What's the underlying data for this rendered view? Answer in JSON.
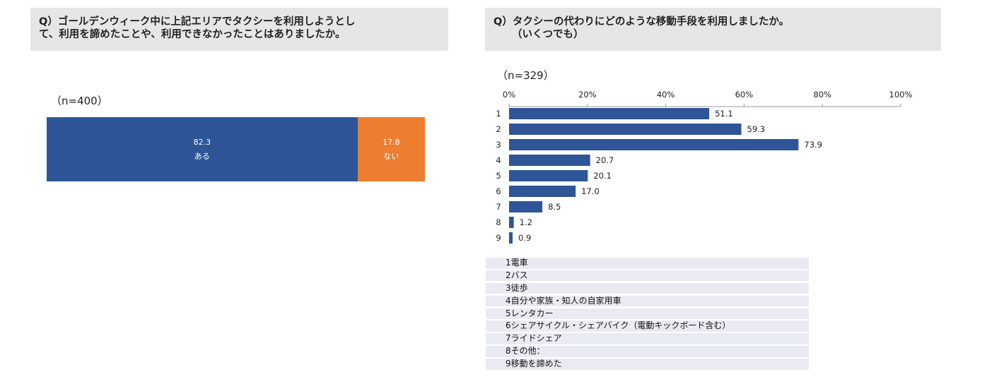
{
  "left": {
    "question_lines": [
      "Q）ゴールデンウィーク中に上記エリアでタクシーを利用しようとし",
      "て、利用を諦めたことや、利用できなかったことはありましたか。"
    ],
    "n_label": "（n=400）"
  },
  "right": {
    "question_lines": [
      "Q）タクシーの代わりにどのような移動手段を利用しましたか。",
      "（いくつでも）"
    ],
    "n_label": "（n=329）",
    "legend": [
      "1電車",
      "2バス",
      "3徒歩",
      "4自分や家族・知人の自家用車",
      "5レンタカー",
      "6シェアサイクル・シェアバイク（電動キックボード含む）",
      "7ライドシェア",
      "8その他：",
      "9移動を諦めた"
    ]
  },
  "colors": {
    "blue": "#2e5597",
    "orange": "#ed7d31",
    "axis": "#999999"
  },
  "chart_data": [
    {
      "type": "bar",
      "orientation": "horizontal-stacked",
      "title": "Q）ゴールデンウィーク中に上記エリアでタクシーを利用しようとして、利用を諦めたことや、利用できなかったことはありましたか。",
      "n": "（n=400）",
      "series": [
        {
          "name": "ある",
          "value_label": "82.3",
          "values": [
            82.3
          ]
        },
        {
          "name": "ない",
          "value_label": "17.8",
          "values": [
            17.8
          ]
        }
      ]
    },
    {
      "type": "bar",
      "orientation": "horizontal",
      "title": "Q）タクシーの代わりにどのような移動手段を利用しましたか。（いくつでも）",
      "n": "（n=329）",
      "categories": [
        "1",
        "2",
        "3",
        "4",
        "5",
        "6",
        "7",
        "8",
        "9"
      ],
      "values": [
        51.1,
        59.3,
        73.9,
        20.7,
        20.1,
        17.0,
        8.5,
        1.2,
        0.9
      ],
      "value_labels": [
        "51.1",
        "59.3",
        "73.9",
        "20.7",
        "20.1",
        "17.0",
        "8.5",
        "1.2",
        "0.9"
      ],
      "xlim": [
        0,
        100
      ],
      "xticks": [
        "0%",
        "20%",
        "40%",
        "60%",
        "80%",
        "100%"
      ],
      "xtick_values": [
        0,
        20,
        40,
        60,
        80,
        100
      ],
      "grid": false
    }
  ]
}
